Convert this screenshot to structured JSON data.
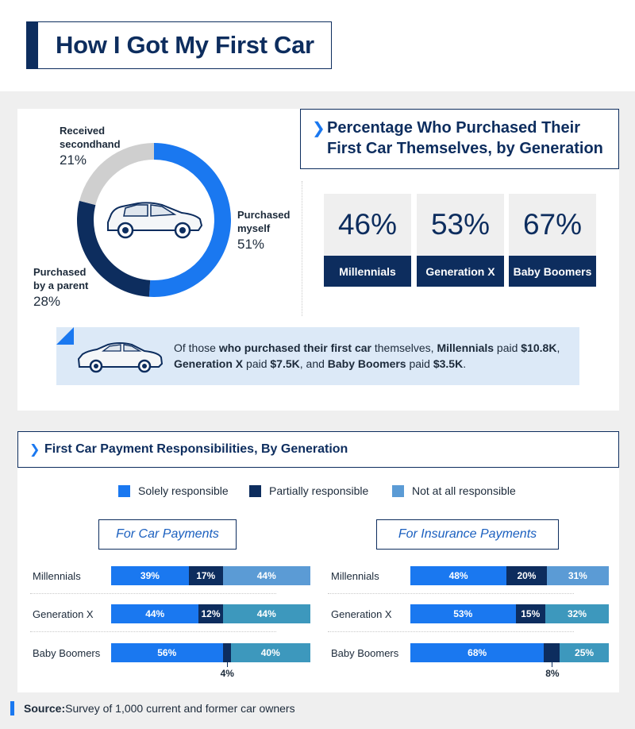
{
  "title": "How I Got My First Car",
  "colors": {
    "navy": "#0d2d5e",
    "blue": "#1a78f0",
    "light_blue": "#5b9bd5",
    "teal_blue": "#3d98bd",
    "gray": "#cfcfcf"
  },
  "donut": {
    "slices": [
      {
        "label": "Purchased myself",
        "line1": "Purchased",
        "line2": "myself",
        "value": 51,
        "pct": "51%",
        "color": "#1a78f0"
      },
      {
        "label": "Purchased by a parent",
        "line1": "Purchased",
        "line2": "by a parent",
        "value": 28,
        "pct": "28%",
        "color": "#0d2d5e"
      },
      {
        "label": "Received secondhand",
        "line1": "Received",
        "line2": "secondhand",
        "value": 21,
        "pct": "21%",
        "color": "#cfcfcf"
      }
    ]
  },
  "gen_section": {
    "title_line1": "Percentage Who Purchased Their",
    "title_line2": "First Car Themselves, by Generation",
    "stats": [
      {
        "value": "46%",
        "label": "Millennials"
      },
      {
        "value": "53%",
        "label": "Generation X"
      },
      {
        "value": "67%",
        "label": "Baby Boomers"
      }
    ]
  },
  "note": {
    "t1": "Of those ",
    "b1": "who purchased their first car",
    "t2": " themselves, ",
    "b2": "Millennials",
    "t3": " paid ",
    "b3": "$10.8K",
    "t4": ", ",
    "b4": "Generation X",
    "t5": " paid ",
    "b5": "$7.5K",
    "t6": ", and ",
    "b6": "Baby Boomers",
    "t7": " paid ",
    "b7": "$3.5K",
    "t8": "."
  },
  "payment_section": {
    "title": "First Car Payment Responsibilities, By Generation",
    "legend": [
      {
        "label": "Solely responsible",
        "color": "#1a78f0"
      },
      {
        "label": "Partially responsible",
        "color": "#0d2d5e"
      },
      {
        "label": "Not at all responsible",
        "color": "#5b9bd5"
      }
    ]
  },
  "chart_data": [
    {
      "type": "bar",
      "stacked": true,
      "orientation": "horizontal",
      "title": "For Car Payments",
      "categories": [
        "Millennials",
        "Generation X",
        "Baby Boomers"
      ],
      "series": [
        {
          "name": "Solely responsible",
          "values": [
            39,
            44,
            56
          ],
          "labels": [
            "39%",
            "44%",
            "56%"
          ]
        },
        {
          "name": "Partially responsible",
          "values": [
            17,
            12,
            4
          ],
          "labels": [
            "17%",
            "12%",
            "4%"
          ]
        },
        {
          "name": "Not at all responsible",
          "values": [
            44,
            44,
            40
          ],
          "labels": [
            "44%",
            "44%",
            "40%"
          ]
        }
      ]
    },
    {
      "type": "bar",
      "stacked": true,
      "orientation": "horizontal",
      "title": "For Insurance Payments",
      "categories": [
        "Millennials",
        "Generation X",
        "Baby Boomers"
      ],
      "series": [
        {
          "name": "Solely responsible",
          "values": [
            48,
            53,
            68
          ],
          "labels": [
            "48%",
            "53%",
            "68%"
          ]
        },
        {
          "name": "Partially responsible",
          "values": [
            20,
            15,
            8
          ],
          "labels": [
            "20%",
            "15%",
            "8%"
          ]
        },
        {
          "name": "Not at all responsible",
          "values": [
            31,
            32,
            25
          ],
          "labels": [
            "31%",
            "32%",
            "25%"
          ]
        }
      ]
    }
  ],
  "source": {
    "label": "Source:",
    "text": " Survey of 1,000 current and former car owners"
  }
}
